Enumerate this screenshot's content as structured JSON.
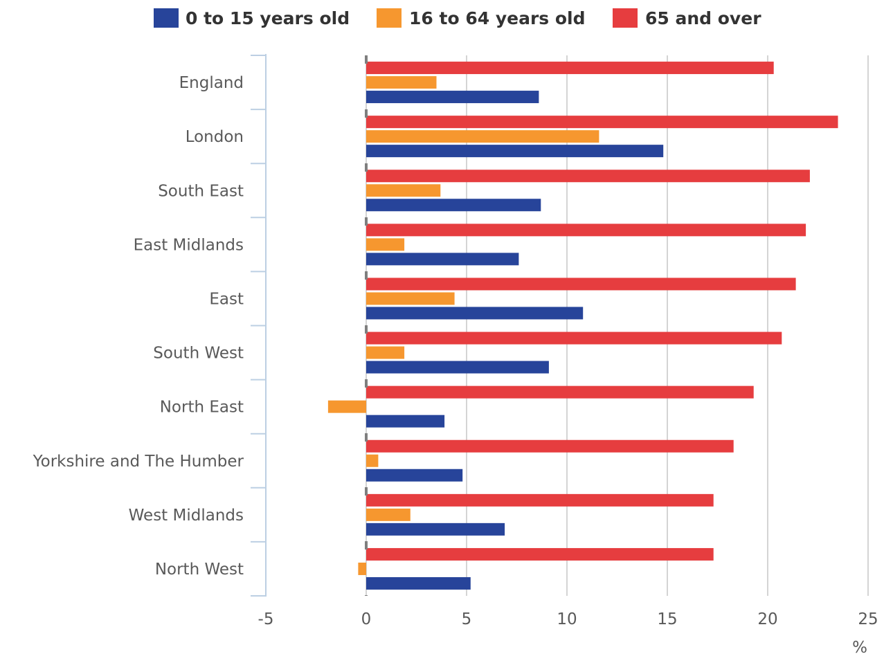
{
  "chart_data": {
    "type": "bar",
    "orientation": "horizontal",
    "categories": [
      "England",
      "London",
      "South East",
      "East Midlands",
      "East",
      "South West",
      "North East",
      "Yorkshire and The Humber",
      "West Midlands",
      "North West"
    ],
    "series": [
      {
        "name": "0 to 15 years old",
        "color": "#27449a",
        "values": [
          8.6,
          14.8,
          8.7,
          7.6,
          10.8,
          9.1,
          3.9,
          4.8,
          6.9,
          5.2
        ]
      },
      {
        "name": "16 to 64 years old",
        "color": "#f6972f",
        "values": [
          3.5,
          11.6,
          3.7,
          1.9,
          4.4,
          1.9,
          -1.9,
          0.6,
          2.2,
          -0.4
        ]
      },
      {
        "name": "65 and over",
        "color": "#e63d3f",
        "values": [
          20.3,
          23.5,
          22.1,
          21.9,
          21.4,
          20.7,
          19.3,
          18.3,
          17.3,
          17.3
        ]
      }
    ],
    "xlim": [
      -5,
      25
    ],
    "xticks": [
      -5,
      0,
      5,
      10,
      15,
      20,
      25
    ],
    "xunit": "%",
    "grid": true,
    "legend_position": "top"
  }
}
